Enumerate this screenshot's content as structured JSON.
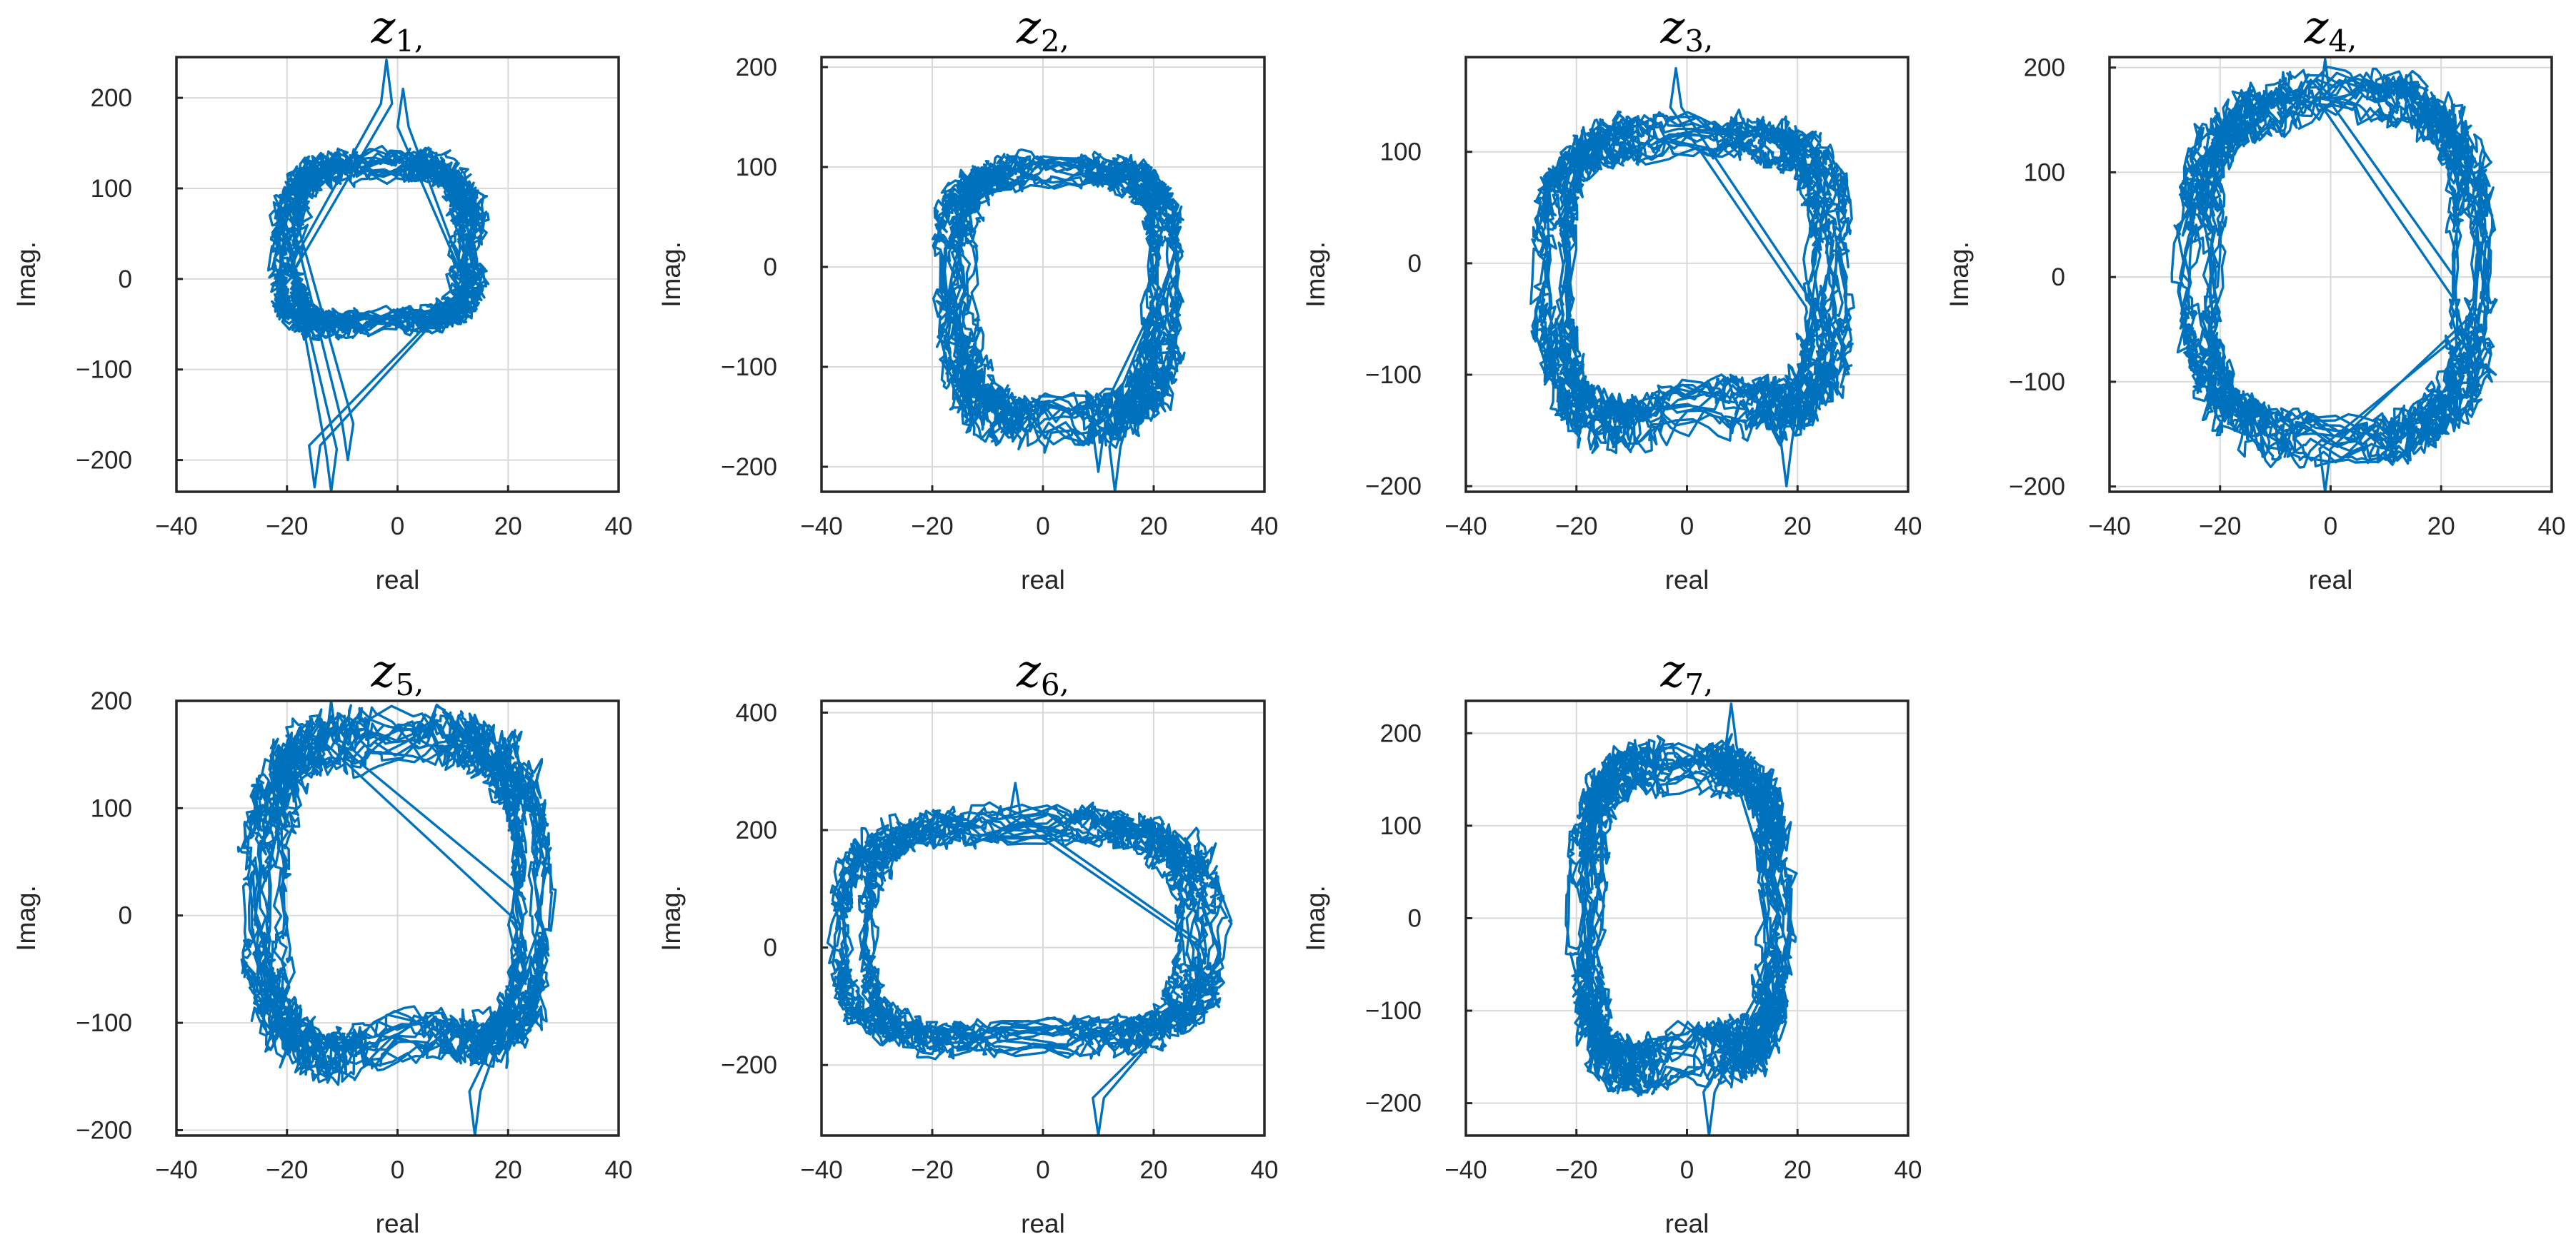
{
  "figure": {
    "line_color": "#0072bd",
    "grid_color": "#d9d9d9",
    "axes_color": "#262626"
  },
  "chart_data": [
    {
      "type": "line",
      "title": "z",
      "title_sub": "1",
      "title_suffix": ",",
      "xlabel": "real",
      "ylabel": "Imag.",
      "xlim": [
        -40,
        40
      ],
      "ylim": [
        -235,
        245
      ],
      "xticks": [
        -40,
        -20,
        0,
        20,
        40
      ],
      "yticks": [
        -200,
        -100,
        0,
        100,
        200
      ],
      "grid": true,
      "series": [
        {
          "loop": {
            "cx": -3,
            "cy": 15,
            "rx_right": 16,
            "rx_left": 17,
            "top": 120,
            "bottom": 90,
            "notch_depth": 0.55,
            "notch_width": 22,
            "turns": 15
          },
          "spikes": [
            [
              -2,
              242
            ],
            [
              -15,
              -230
            ],
            [
              -12,
              -235
            ],
            [
              1,
              210
            ],
            [
              -9,
              -200
            ]
          ]
        }
      ]
    },
    {
      "type": "line",
      "title": "z",
      "title_sub": "2",
      "title_suffix": ",",
      "xlabel": "real",
      "ylabel": "Imag.",
      "xlim": [
        -40,
        40
      ],
      "ylim": [
        -225,
        210
      ],
      "xticks": [
        -40,
        -20,
        0,
        20,
        40
      ],
      "yticks": [
        -200,
        -100,
        0,
        100,
        200
      ],
      "grid": true,
      "series": [
        {
          "loop": {
            "cx": 3,
            "cy": 0,
            "rx_right": 19,
            "rx_left": 19,
            "top": 105,
            "bottom": 165,
            "notch_depth": 0.0,
            "notch_width": 10,
            "turns": 15
          },
          "spikes": [
            [
              13,
              -225
            ],
            [
              10,
              -205
            ]
          ]
        }
      ]
    },
    {
      "type": "line",
      "title": "z",
      "title_sub": "3",
      "title_suffix": ",",
      "xlabel": "real",
      "ylabel": "Imag.",
      "xlim": [
        -40,
        40
      ],
      "ylim": [
        -205,
        185
      ],
      "xticks": [
        -40,
        -20,
        0,
        20,
        40
      ],
      "yticks": [
        -200,
        -100,
        0,
        100,
        200
      ],
      "grid": true,
      "series": [
        {
          "loop": {
            "cx": 1,
            "cy": -5,
            "rx_right": 25,
            "rx_left": 25,
            "top": 130,
            "bottom": 160,
            "notch_depth": 0.45,
            "notch_width": 14,
            "turns": 15
          },
          "spikes": [
            [
              18,
              -200
            ],
            [
              -2,
              175
            ]
          ]
        }
      ]
    },
    {
      "type": "line",
      "title": "z",
      "title_sub": "4",
      "title_suffix": ",",
      "xlabel": "real",
      "ylabel": "Imag.",
      "xlim": [
        -40,
        40
      ],
      "ylim": [
        -205,
        210
      ],
      "xticks": [
        -40,
        -20,
        0,
        20,
        40
      ],
      "yticks": [
        -200,
        -100,
        0,
        100,
        200
      ],
      "grid": true,
      "series": [
        {
          "loop": {
            "cx": 1,
            "cy": 5,
            "rx_right": 25,
            "rx_left": 25,
            "top": 165,
            "bottom": 155,
            "notch_depth": -0.25,
            "notch_width": 18,
            "turns": 15
          },
          "spikes": [
            [
              -1,
              208
            ],
            [
              -1,
              -205
            ]
          ]
        }
      ]
    },
    {
      "type": "line",
      "title": "z",
      "title_sub": "5",
      "title_suffix": ",",
      "xlabel": "real",
      "ylabel": "Imag.",
      "xlim": [
        -40,
        40
      ],
      "ylim": [
        -205,
        200
      ],
      "xticks": [
        -40,
        -20,
        0,
        20,
        40
      ],
      "yticks": [
        -200,
        -100,
        0,
        100,
        200
      ],
      "grid": true,
      "series": [
        {
          "loop": {
            "cx": 0,
            "cy": 5,
            "rx_right": 24,
            "rx_left": 24,
            "top": 175,
            "bottom": 150,
            "notch_depth": 0.35,
            "notch_width": 12,
            "turns": 15
          },
          "spikes": [
            [
              -12,
              200
            ],
            [
              14,
              -205
            ]
          ]
        }
      ]
    },
    {
      "type": "line",
      "title": "z",
      "title_sub": "6",
      "title_suffix": ",",
      "xlabel": "real",
      "ylabel": "Imag.",
      "xlim": [
        -40,
        40
      ],
      "ylim": [
        -320,
        420
      ],
      "xticks": [
        -40,
        -20,
        0,
        20,
        40
      ],
      "yticks": [
        -200,
        0,
        200,
        400
      ],
      "grid": true,
      "series": [
        {
          "loop": {
            "cx": -3,
            "cy": 15,
            "rx_right": 31,
            "rx_left": 31,
            "top": 210,
            "bottom": 190,
            "notch_depth": 0.15,
            "notch_width": 18,
            "turns": 15
          },
          "spikes": [
            [
              -5,
              280
            ],
            [
              10,
              -320
            ]
          ]
        }
      ]
    },
    {
      "type": "line",
      "title": "z",
      "title_sub": "7",
      "title_suffix": ",",
      "xlabel": "real",
      "ylabel": "Imag.",
      "xlim": [
        -40,
        40
      ],
      "ylim": [
        -235,
        235
      ],
      "xticks": [
        -40,
        -20,
        0,
        20,
        40
      ],
      "yticks": [
        -200,
        -100,
        0,
        100,
        200
      ],
      "grid": true,
      "series": [
        {
          "loop": {
            "cx": -1,
            "cy": 0,
            "rx_right": 17,
            "rx_left": 17,
            "top": 180,
            "bottom": 185,
            "notch_depth": 0.4,
            "notch_width": 10,
            "turns": 15
          },
          "spikes": [
            [
              8,
              232
            ],
            [
              4,
              -235
            ]
          ]
        }
      ]
    }
  ]
}
